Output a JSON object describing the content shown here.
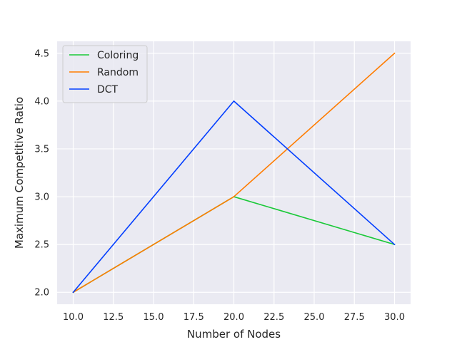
{
  "chart_data": {
    "type": "line",
    "title": "",
    "xlabel": "Number of Nodes",
    "ylabel": "Maximum Competitive Ratio",
    "x": [
      10,
      20,
      30
    ],
    "xlim": [
      9.0,
      31.0
    ],
    "ylim": [
      1.875,
      4.625
    ],
    "xticks": [
      10.0,
      12.5,
      15.0,
      17.5,
      20.0,
      22.5,
      25.0,
      27.5,
      30.0
    ],
    "xtick_labels": [
      "10.0",
      "12.5",
      "15.0",
      "17.5",
      "20.0",
      "22.5",
      "25.0",
      "27.5",
      "30.0"
    ],
    "yticks": [
      2.0,
      2.5,
      3.0,
      3.5,
      4.0,
      4.5
    ],
    "ytick_labels": [
      "2.0",
      "2.5",
      "3.0",
      "3.5",
      "4.0",
      "4.5"
    ],
    "grid": true,
    "legend_position": "top-left",
    "series": [
      {
        "name": "Coloring",
        "color": "#1ac938",
        "values": [
          2.0,
          3.0,
          2.5
        ]
      },
      {
        "name": "Random",
        "color": "#ff7c00",
        "values": [
          2.0,
          3.0,
          4.5
        ]
      },
      {
        "name": "DCT",
        "color": "#023eff",
        "values": [
          2.0,
          4.0,
          2.5
        ]
      }
    ],
    "background_color": "#eaeaf2",
    "grid_color": "#ffffff"
  }
}
